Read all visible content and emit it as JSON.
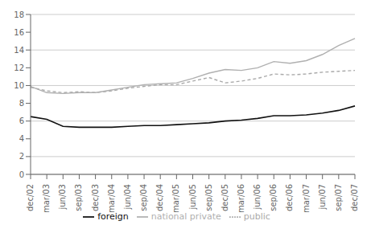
{
  "chart_data": {
    "type": "line",
    "categories": [
      "dec/02",
      "mar/03",
      "jun/03",
      "sep/03",
      "dec/03",
      "mar/04",
      "jun/04",
      "sep/04",
      "dec/04",
      "mar/05",
      "jun/05",
      "sep/05",
      "dec/05",
      "mar/06",
      "jun/06",
      "sep/06",
      "dec/06",
      "mar/07",
      "jun/07",
      "sep/07",
      "dec/07"
    ],
    "series": [
      {
        "name": "public",
        "color": "#aaaaaa",
        "line_style": "dashed",
        "values": [
          9.8,
          9.4,
          9.2,
          9.3,
          9.2,
          9.4,
          9.7,
          9.9,
          10.1,
          10.1,
          10.5,
          10.9,
          10.3,
          10.5,
          10.8,
          11.3,
          11.2,
          11.3,
          11.5,
          11.6,
          11.7
        ]
      },
      {
        "name": "national private",
        "color": "#b0b0b0",
        "line_style": "solid",
        "values": [
          9.9,
          9.2,
          9.1,
          9.2,
          9.2,
          9.5,
          9.8,
          10.1,
          10.2,
          10.3,
          10.8,
          11.4,
          11.8,
          11.7,
          12.0,
          12.7,
          12.5,
          12.8,
          13.5,
          14.5,
          15.3
        ]
      },
      {
        "name": "foreign",
        "color": "#111111",
        "line_style": "solid",
        "values": [
          6.5,
          6.2,
          5.4,
          5.3,
          5.3,
          5.3,
          5.4,
          5.5,
          5.5,
          5.6,
          5.7,
          5.8,
          6.0,
          6.1,
          6.3,
          6.6,
          6.6,
          6.7,
          6.9,
          7.2,
          7.7
        ]
      }
    ],
    "ylim": [
      0,
      18
    ],
    "yticks": [
      0,
      2,
      4,
      6,
      8,
      10,
      12,
      14,
      16,
      18
    ],
    "grid": true,
    "legend": "bottom"
  }
}
